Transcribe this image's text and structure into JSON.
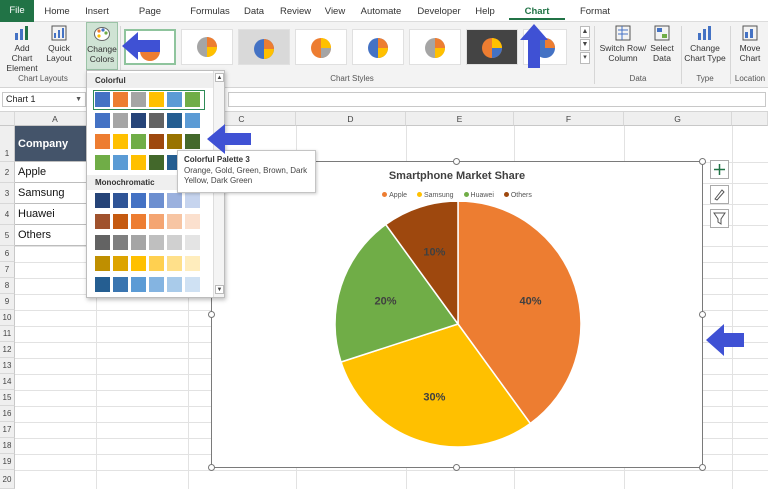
{
  "tabs": [
    "File",
    "Home",
    "Insert",
    "Page Layout",
    "Formulas",
    "Data",
    "Review",
    "View",
    "Automate",
    "Developer",
    "Help",
    "Chart Design",
    "Format"
  ],
  "active_tab": "Chart Design",
  "ribbon": {
    "add_chart_element": "Add Chart Element",
    "add_chart_element_l1": "Add Chart",
    "add_chart_element_l2": "Element",
    "quick_layout_l1": "Quick",
    "quick_layout_l2": "Layout",
    "change_colors_l1": "Change",
    "change_colors_l2": "Colors",
    "chart_layouts_label": "Chart Layouts",
    "chart_styles_label": "Chart Styles",
    "switch_row_col_l1": "Switch Row/",
    "switch_row_col_l2": "Column",
    "select_data_l1": "Select",
    "select_data_l2": "Data",
    "data_label": "Data",
    "change_chart_type_l1": "Change",
    "change_chart_type_l2": "Chart Type",
    "type_label": "Type",
    "move_chart_l1": "Move",
    "move_chart_l2": "Chart",
    "location_label": "Location"
  },
  "formula_bar": {
    "name_box": "Chart 1",
    "formula": ""
  },
  "columns": [
    "A",
    "B",
    "C",
    "D",
    "E",
    "F",
    "G"
  ],
  "rows": [
    "1",
    "2",
    "3",
    "4",
    "5",
    "6",
    "7",
    "8",
    "9",
    "10",
    "11",
    "12",
    "13",
    "14",
    "15",
    "16",
    "17",
    "18",
    "19",
    "20"
  ],
  "table": {
    "header": "Company",
    "rows": [
      "Apple",
      "Samsung",
      "Huawei",
      "Others"
    ]
  },
  "chart": {
    "title": "Smartphone Market Share",
    "legend": [
      {
        "name": "Apple",
        "color": "#ED7D31"
      },
      {
        "name": "Samsung",
        "color": "#FFC000"
      },
      {
        "name": "Huawei",
        "color": "#70AD47"
      },
      {
        "name": "Others",
        "color": "#9E480E"
      }
    ]
  },
  "chart_data": {
    "type": "pie",
    "title": "Smartphone Market Share",
    "categories": [
      "Apple",
      "Samsung",
      "Huawei",
      "Others"
    ],
    "values": [
      40,
      30,
      20,
      10
    ],
    "labels": [
      "40%",
      "30%",
      "20%",
      "10%"
    ],
    "colors": [
      "#ED7D31",
      "#FFC000",
      "#70AD47",
      "#9E480E"
    ],
    "legend_position": "top"
  },
  "color_dropdown": {
    "colorful_label": "Colorful",
    "monochromatic_label": "Monochromatic",
    "colorful_palettes": [
      [
        "#4472C4",
        "#ED7D31",
        "#A5A5A5",
        "#FFC000",
        "#5B9BD5",
        "#70AD47"
      ],
      [
        "#4472C4",
        "#A5A5A5",
        "#264478",
        "#636363",
        "#255E91",
        "#5B9BD5"
      ],
      [
        "#ED7D31",
        "#FFC000",
        "#70AD47",
        "#9E480E",
        "#997300",
        "#43682B"
      ],
      [
        "#70AD47",
        "#5B9BD5",
        "#FFC000",
        "#43682B",
        "#255E91",
        "#997300"
      ]
    ],
    "mono_palettes": [
      [
        "#264478",
        "#2F5597",
        "#4472C4",
        "#6D8FD0",
        "#9BB1DE",
        "#C6D4EE"
      ],
      [
        "#A0522D",
        "#C55A11",
        "#ED7D31",
        "#F4A572",
        "#F7C5A3",
        "#FBE0CE"
      ],
      [
        "#636363",
        "#7F7F7F",
        "#A5A5A5",
        "#BFBFBF",
        "#D0D0D0",
        "#E4E4E4"
      ],
      [
        "#BF8F00",
        "#DDA400",
        "#FFC000",
        "#FFD050",
        "#FFE08A",
        "#FFEDBD"
      ],
      [
        "#255E91",
        "#3A75B0",
        "#5B9BD5",
        "#84B4E1",
        "#A9CBEA",
        "#CFE1F3"
      ]
    ]
  },
  "tooltip": {
    "title": "Colorful Palette 3",
    "body": "Orange, Gold, Green, Brown, Dark Yellow, Dark Green"
  }
}
